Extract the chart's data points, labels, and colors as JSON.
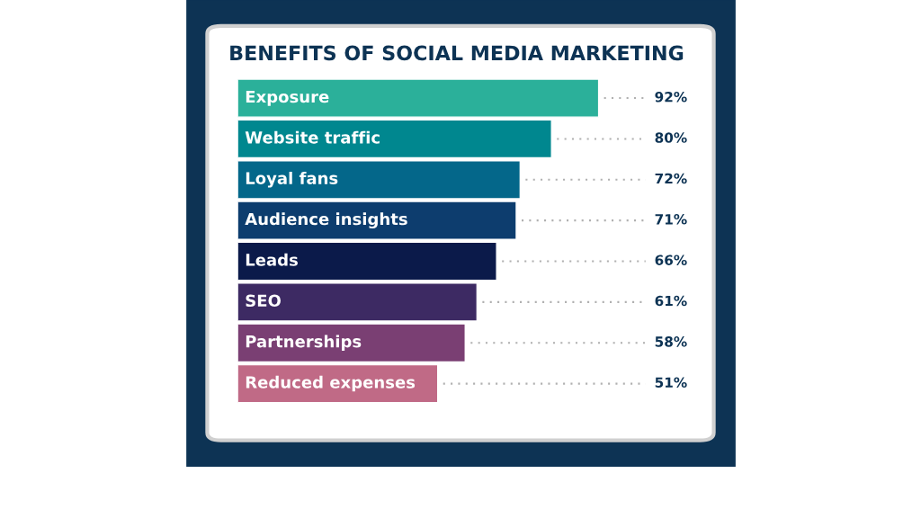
{
  "chart_data": {
    "type": "bar",
    "orientation": "horizontal",
    "title": "BENEFITS OF SOCIAL MEDIA MARKETING",
    "categories": [
      "Exposure",
      "Website traffic",
      "Loyal fans",
      "Audience insights",
      "Leads",
      "SEO",
      "Partnerships",
      "Reduced expenses"
    ],
    "values": [
      92,
      80,
      72,
      71,
      66,
      61,
      58,
      51
    ],
    "value_labels": [
      "92%",
      "80%",
      "72%",
      "71%",
      "66%",
      "61%",
      "58%",
      "51%"
    ],
    "colors": [
      "#2bb09a",
      "#00878f",
      "#04678a",
      "#0d3d6e",
      "#0b1a4a",
      "#3d2a63",
      "#7a3f73",
      "#c06a86"
    ]
  }
}
